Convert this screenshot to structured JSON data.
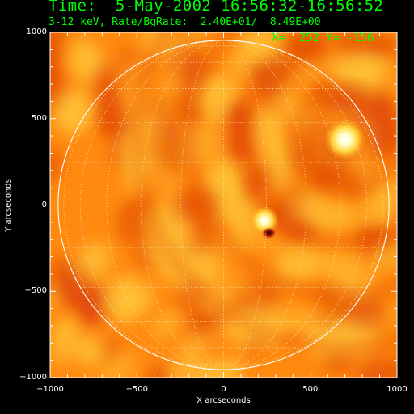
{
  "header": {
    "title": "Time:  5-May-2002 16:56:32-16:56:52",
    "subtitle": "3-12 keV, Rate/BgRate:  2.40E+01/  8.49E+00",
    "cursor_readout": "X=  252 Y= -156"
  },
  "colors": {
    "text": "#00ff00",
    "background": "#000000",
    "axes": "#ffffff",
    "limb": "#ffffff",
    "grid": "#ffe0a0",
    "map_base": "#ff8a10",
    "map_dark": "#e24a08",
    "map_light": "#ffc236",
    "source": "#ffffcc"
  },
  "chart_data": {
    "type": "heatmap",
    "xlabel": "X arcseconds",
    "ylabel": "Y arcseconds",
    "xlim": [
      -1000,
      1000
    ],
    "ylim": [
      -1000,
      1000
    ],
    "x_ticks": [
      -1000,
      -500,
      0,
      500,
      1000
    ],
    "y_ticks": [
      -1000,
      -500,
      0,
      500,
      1000
    ],
    "x_tick_labels": [
      "−1000",
      "−500",
      "0",
      "500",
      "1000"
    ],
    "y_tick_labels": [
      "−1000",
      "−500",
      "0",
      "500",
      "1000"
    ],
    "solar_radius_arcsec": 954,
    "heliographic_grid": true,
    "grid_spacing_deg": 15,
    "sources": [
      {
        "x": 700,
        "y": 380,
        "peak": 1.0
      },
      {
        "x": 235,
        "y": -90,
        "peak": 0.85
      }
    ],
    "dark_spot": {
      "x": 262,
      "y": -162
    }
  }
}
